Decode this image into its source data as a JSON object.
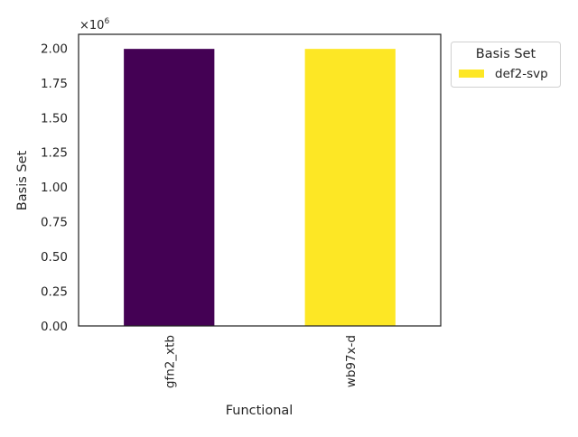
{
  "chart_data": {
    "type": "bar",
    "title": "",
    "xlabel": "Functional",
    "ylabel": "Basis Set",
    "categories": [
      "gfn2_xtb",
      "wb97x-d"
    ],
    "values": [
      1995000,
      1995000
    ],
    "bar_colors": [
      "#440154",
      "#fde725"
    ],
    "ylim": [
      0,
      2100000
    ],
    "yticks": [
      0,
      250000,
      500000,
      750000,
      1000000,
      1250000,
      1500000,
      1750000,
      2000000
    ],
    "ytick_labels": [
      "0.00",
      "0.25",
      "0.50",
      "0.75",
      "1.00",
      "1.25",
      "1.50",
      "1.75",
      "2.00"
    ],
    "y_offset_label": "×10",
    "y_offset_exponent": "6",
    "grid": false,
    "legend": {
      "title": "Basis Set",
      "placement": "outside-top-right",
      "entries": [
        {
          "name": "def2-svp",
          "color": "#fde725"
        }
      ]
    }
  }
}
